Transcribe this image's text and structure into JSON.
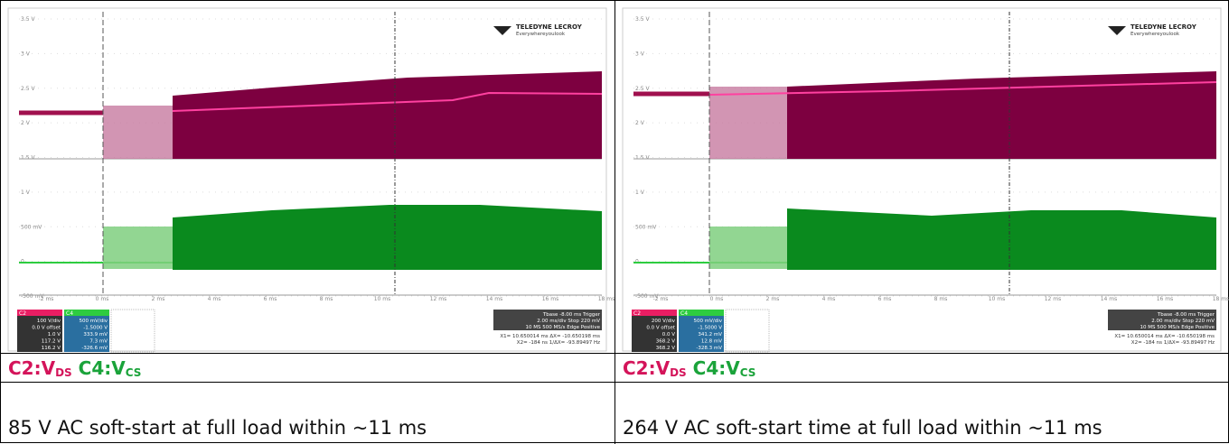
{
  "panels": [
    {
      "scope": {
        "y_labels": [
          "3.5 V",
          "3 V",
          "2.5 V",
          "2 V",
          "1.5 V",
          "1 V",
          "500 mV",
          "0",
          "-500 mV"
        ],
        "x_labels": [
          "-2 ms",
          "0 ms",
          "2 ms",
          "4 ms",
          "6 ms",
          "8 ms",
          "10 ms",
          "12 ms",
          "14 ms",
          "16 ms",
          "18 ms"
        ],
        "logo": "TELEDYNE LECROY",
        "tagline": "Everywhereyoulook",
        "c2": {
          "title": "C2",
          "lines": [
            "100 V/div",
            "0.0 V offset",
            "1.0 V",
            "117.2 V",
            "116.2 V"
          ]
        },
        "c4": {
          "title": "C4",
          "lines": [
            "500 mV/div",
            "-1.5000 V",
            "333.9 mV",
            "7.3 mV",
            "-326.6 mV"
          ]
        },
        "tbase": [
          "Tbase -8.00 ms  Trigger",
          "2.00 ms/div  Stop  220 mV",
          "10 MS  500 MS/s  Edge  Positive"
        ],
        "cursors": [
          "X1= 10.650014 ms  ΔX= -10.650198 ms",
          "X2= -184 ns  1/ΔX= -93.89497 Hz"
        ]
      },
      "label": {
        "c2": "C2:V",
        "c2_sub": "DS",
        "c4": "C4:V",
        "c4_sub": "CS"
      },
      "caption": "85 V AC soft-start at full load within ~11 ms"
    },
    {
      "scope": {
        "y_labels": [
          "3.5 V",
          "3 V",
          "2.5 V",
          "2 V",
          "1.5 V",
          "1 V",
          "500 mV",
          "0",
          "-500 mV"
        ],
        "x_labels": [
          "-2 ms",
          "0 ms",
          "2 ms",
          "4 ms",
          "6 ms",
          "8 ms",
          "10 ms",
          "12 ms",
          "14 ms",
          "16 ms",
          "18 ms"
        ],
        "logo": "TELEDYNE LECROY",
        "tagline": "Everywhereyoulook",
        "c2": {
          "title": "C2",
          "lines": [
            "200 V/div",
            "0.0 V offset",
            "0.0 V",
            "368.2 V",
            "368.2 V"
          ]
        },
        "c4": {
          "title": "C4",
          "lines": [
            "500 mV/div",
            "-1.5000 V",
            "341.2 mV",
            "12.8 mV",
            "-328.3 mV"
          ]
        },
        "tbase": [
          "Tbase -8.00 ms  Trigger",
          "2.00 ms/div  Stop  220 mV",
          "10 MS  500 MS/s  Edge  Positive"
        ],
        "cursors": [
          "X1= 10.650014 ms  ΔX= -10.650198 ms",
          "X2= -184 ns  1/ΔX= -93.89497 Hz"
        ]
      },
      "label": {
        "c2": "C2:V",
        "c2_sub": "DS",
        "c4": "C4:V",
        "c4_sub": "CS"
      },
      "caption": "264 V AC soft-start time at full load within ~11 ms"
    }
  ]
}
